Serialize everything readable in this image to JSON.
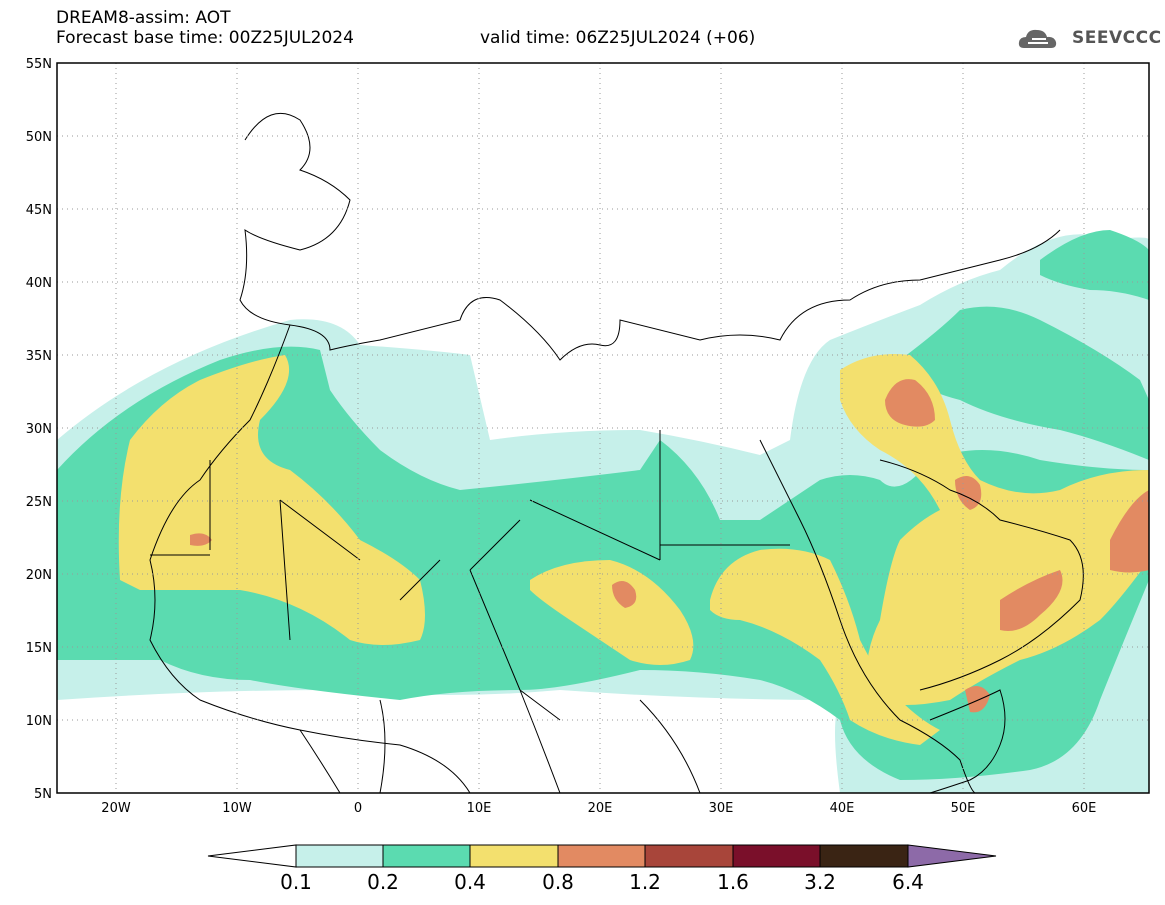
{
  "header": {
    "title": "DREAM8-assim: AOT",
    "base_time": "Forecast base time: 00Z25JUL2024",
    "valid_time": "valid time: 06Z25JUL2024 (+06)"
  },
  "logo": {
    "text": "SEEVCCC",
    "icon": "cloud-icon"
  },
  "map": {
    "lon_range": [
      -25,
      65
    ],
    "lat_range": [
      5,
      55
    ],
    "lat_ticks": [
      "5N",
      "10N",
      "15N",
      "20N",
      "25N",
      "30N",
      "35N",
      "40N",
      "45N",
      "50N",
      "55N"
    ],
    "lon_ticks": [
      "20W",
      "10W",
      "0",
      "10E",
      "20E",
      "30E",
      "40E",
      "50E",
      "60E"
    ],
    "grid": "dotted"
  },
  "colorbar": {
    "labels": [
      "0.1",
      "0.2",
      "0.4",
      "0.8",
      "1.2",
      "1.6",
      "3.2",
      "6.4"
    ],
    "colors": [
      "#c6f0ea",
      "#5bdbb0",
      "#f3e06e",
      "#e28a62",
      "#a8453a",
      "#7a0f2a",
      "#3a2414",
      "#8d6aa8"
    ]
  },
  "colors": {
    "level1": "#c6f0ea",
    "level2": "#5bdbb0",
    "level3": "#f3e06e",
    "level4": "#e28a62"
  }
}
